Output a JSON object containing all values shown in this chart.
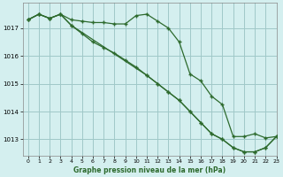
{
  "title": "Graphe pression niveau de la mer (hPa)",
  "bg_color": "#d4efef",
  "grid_color": "#a0c8c8",
  "line_color": "#2d6a2d",
  "xlim": [
    -0.5,
    23
  ],
  "ylim": [
    1012.4,
    1017.9
  ],
  "yticks": [
    1013,
    1014,
    1015,
    1016,
    1017
  ],
  "xticks": [
    0,
    1,
    2,
    3,
    4,
    5,
    6,
    7,
    8,
    9,
    10,
    11,
    12,
    13,
    14,
    15,
    16,
    17,
    18,
    19,
    20,
    21,
    22,
    23
  ],
  "line1_x": [
    0,
    1,
    2,
    3,
    4,
    5,
    6,
    7,
    8,
    9,
    10,
    11,
    12,
    13,
    14,
    15,
    16,
    17,
    18,
    19,
    20,
    21,
    22,
    23
  ],
  "line1_y": [
    1017.3,
    1017.5,
    1017.35,
    1017.5,
    1017.3,
    1017.25,
    1017.2,
    1017.2,
    1017.15,
    1017.15,
    1017.45,
    1017.5,
    1017.25,
    1017.0,
    1016.5,
    1015.35,
    1015.1,
    1014.55,
    1014.25,
    1013.1,
    1013.1,
    1013.2,
    1013.05,
    1013.1
  ],
  "line2_x": [
    0,
    1,
    2,
    3,
    4,
    5,
    6,
    7,
    8,
    9,
    10,
    11,
    12,
    13,
    14,
    15,
    16,
    17,
    18,
    19,
    20,
    21,
    22,
    23
  ],
  "line2_y": [
    1017.3,
    1017.5,
    1017.35,
    1017.5,
    1017.1,
    1016.8,
    1016.5,
    1016.3,
    1016.1,
    1015.85,
    1015.6,
    1015.3,
    1015.0,
    1014.7,
    1014.4,
    1014.0,
    1013.6,
    1013.2,
    1013.0,
    1012.7,
    1012.55,
    1012.55,
    1012.7,
    1013.1
  ],
  "line3_x": [
    0,
    1,
    2,
    3,
    4,
    11,
    12,
    13,
    14,
    15,
    16,
    17,
    18,
    19,
    20,
    21,
    22,
    23
  ],
  "line3_y": [
    1017.3,
    1017.5,
    1017.35,
    1017.5,
    1017.1,
    1015.3,
    1015.0,
    1014.7,
    1014.4,
    1014.0,
    1013.6,
    1013.2,
    1013.0,
    1012.7,
    1012.55,
    1012.55,
    1012.7,
    1013.1
  ]
}
